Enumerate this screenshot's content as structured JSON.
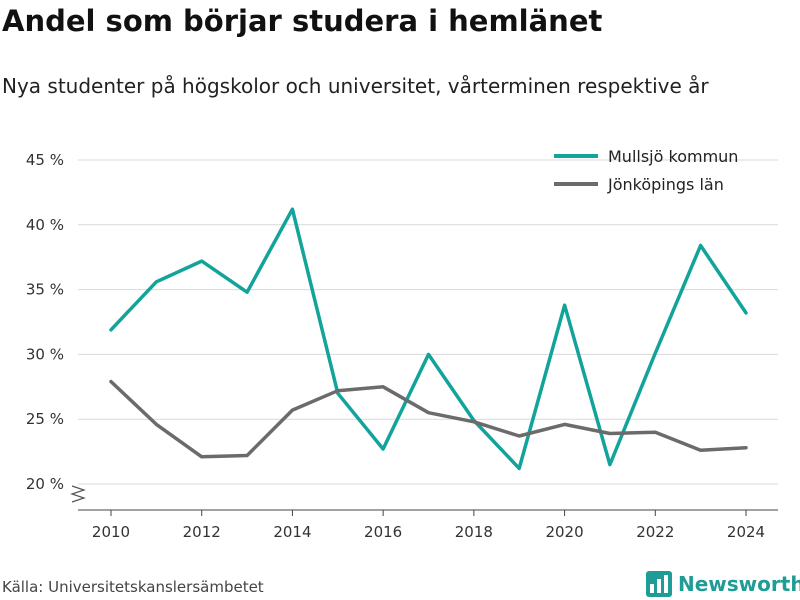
{
  "header": {
    "title": "Andel som börjar studera i hemlänet",
    "subtitle": "Nya studenter på högskolor och universitet, vårterminen respektive år"
  },
  "footer": {
    "source": "Källa: Universitetskanslersämbetet",
    "brand_name": "Newsworthy",
    "brand_icon": "newsworthy-logo-icon"
  },
  "chart_data": {
    "type": "line",
    "x": [
      2010,
      2011,
      2012,
      2013,
      2014,
      2015,
      2016,
      2017,
      2018,
      2019,
      2020,
      2021,
      2022,
      2023,
      2024
    ],
    "series": [
      {
        "name": "Mullsjö kommun",
        "color": "#12a39a",
        "values": [
          31.9,
          35.6,
          37.2,
          34.8,
          41.2,
          27.0,
          22.7,
          30.0,
          24.9,
          21.2,
          33.8,
          21.5,
          30.1,
          38.4,
          33.2
        ]
      },
      {
        "name": "Jönköpings län",
        "color": "#6b6b6b",
        "values": [
          27.9,
          24.6,
          22.1,
          22.2,
          25.7,
          27.2,
          27.5,
          25.5,
          24.8,
          23.7,
          24.6,
          23.9,
          24.0,
          22.6,
          22.8
        ]
      }
    ],
    "ylim": [
      20,
      45
    ],
    "yticks": [
      "20 %",
      "25 %",
      "30 %",
      "35 %",
      "40 %",
      "45 %"
    ],
    "xticks": [
      "2010",
      "2012",
      "2014",
      "2016",
      "2018",
      "2020",
      "2022",
      "2024"
    ],
    "y_axis_break": true,
    "grid": "horizontal",
    "legend_position": "top-right"
  }
}
